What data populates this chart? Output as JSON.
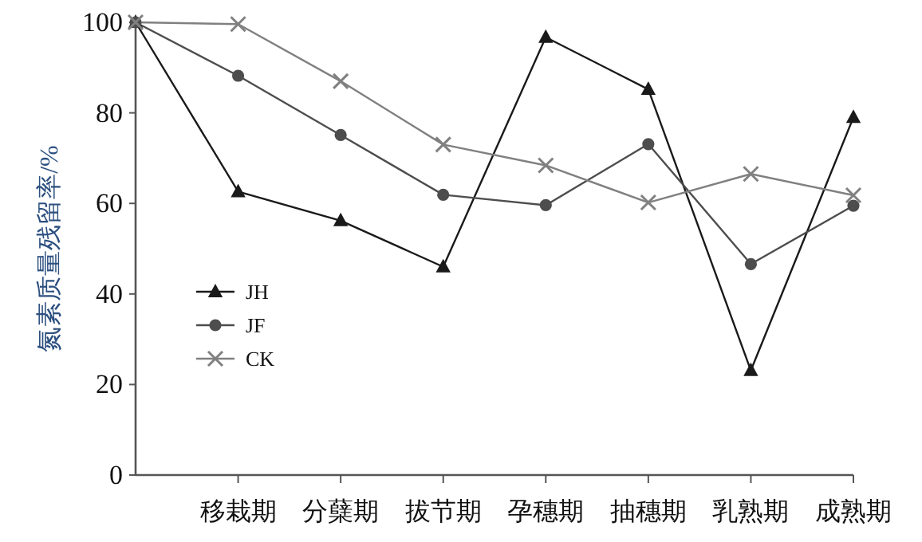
{
  "chart_data": {
    "type": "line",
    "ylabel": "氮素质量残留率/%",
    "categories": [
      null,
      "移栽期",
      "分蘖期",
      "拔节期",
      "孕穗期",
      "抽穗期",
      "乳熟期",
      "成熟期"
    ],
    "ylim": [
      0,
      100
    ],
    "yticks": [
      0,
      20,
      40,
      60,
      80,
      100
    ],
    "grid": false,
    "legend": "left",
    "line_style": "solid",
    "series": [
      {
        "name": "JH",
        "color": "#1a1a1a",
        "marker": "triangle",
        "values": [
          100,
          62.6,
          56.2,
          46.0,
          96.7,
          85.2,
          23.1,
          79.0
        ]
      },
      {
        "name": "JF",
        "color": "#4d4d4d",
        "marker": "circle",
        "values": [
          100,
          88.2,
          75.1,
          61.9,
          59.6,
          73.1,
          46.6,
          59.5
        ]
      },
      {
        "name": "CK",
        "color": "#808080",
        "marker": "cross",
        "values": [
          100,
          99.6,
          87.0,
          73.0,
          68.4,
          60.2,
          66.5,
          61.8
        ]
      }
    ]
  }
}
